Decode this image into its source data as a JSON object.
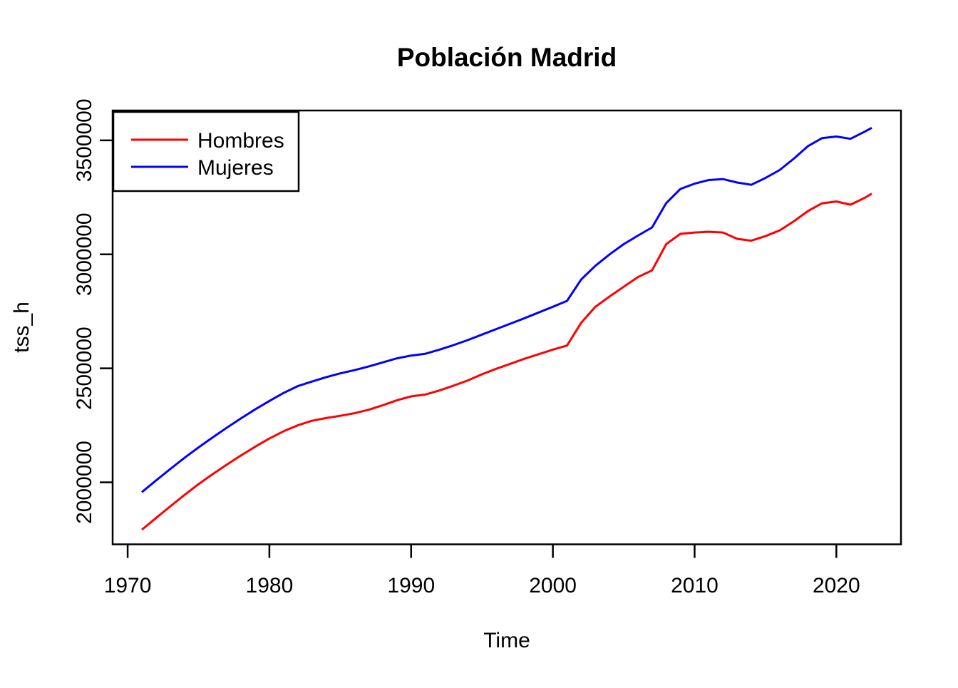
{
  "title": "Población Madrid",
  "chart_data": {
    "type": "line",
    "title": "Población Madrid",
    "xlabel": "Time",
    "ylabel": "tss_h",
    "x": [
      1971,
      1972,
      1973,
      1974,
      1975,
      1976,
      1977,
      1978,
      1979,
      1980,
      1981,
      1982,
      1983,
      1984,
      1985,
      1986,
      1987,
      1988,
      1989,
      1990,
      1991,
      1992,
      1993,
      1994,
      1995,
      1996,
      1997,
      1998,
      1999,
      2000,
      2001,
      2002,
      2003,
      2004,
      2005,
      2006,
      2007,
      2008,
      2009,
      2010,
      2011,
      2012,
      2013,
      2014,
      2015,
      2016,
      2017,
      2018,
      2019,
      2020,
      2021,
      2022,
      2022.5
    ],
    "series": [
      {
        "name": "Hombres",
        "color": "#FF0000",
        "values": [
          1792000,
          1843000,
          1894000,
          1944000,
          1992000,
          2036000,
          2078000,
          2118000,
          2156000,
          2192000,
          2224000,
          2250000,
          2270000,
          2282000,
          2292000,
          2303000,
          2318000,
          2338000,
          2360000,
          2377000,
          2385000,
          2403000,
          2424000,
          2447000,
          2474000,
          2498000,
          2520000,
          2542000,
          2562000,
          2582000,
          2600000,
          2700000,
          2770000,
          2815000,
          2858000,
          2900000,
          2930000,
          3045000,
          3090000,
          3096000,
          3099000,
          3096000,
          3068000,
          3060000,
          3080000,
          3105000,
          3145000,
          3190000,
          3224000,
          3232000,
          3218000,
          3248000,
          3266000
        ]
      },
      {
        "name": "Mujeres",
        "color": "#0000FF",
        "values": [
          1957000,
          2008000,
          2058000,
          2107000,
          2153000,
          2197000,
          2240000,
          2281000,
          2320000,
          2357000,
          2392000,
          2422000,
          2442000,
          2461000,
          2478000,
          2492000,
          2508000,
          2526000,
          2544000,
          2556000,
          2564000,
          2582000,
          2602000,
          2624000,
          2648000,
          2672000,
          2696000,
          2720000,
          2745000,
          2770000,
          2796000,
          2890000,
          2950000,
          3000000,
          3045000,
          3082000,
          3118000,
          3225000,
          3287000,
          3310000,
          3326000,
          3330000,
          3315000,
          3305000,
          3335000,
          3370000,
          3420000,
          3475000,
          3510000,
          3517000,
          3507000,
          3538000,
          3555000
        ]
      }
    ],
    "x_ticks": [
      1970,
      1980,
      1990,
      2000,
      2010,
      2020
    ],
    "y_ticks": [
      2000000,
      2500000,
      3000000,
      3500000
    ],
    "xlim": [
      1968.94,
      2024.56
    ],
    "ylim": [
      1728000,
      3631000
    ],
    "grid": false,
    "legend_position": "topleft",
    "background": "#FFFFFF",
    "axis_color": "#000000"
  }
}
